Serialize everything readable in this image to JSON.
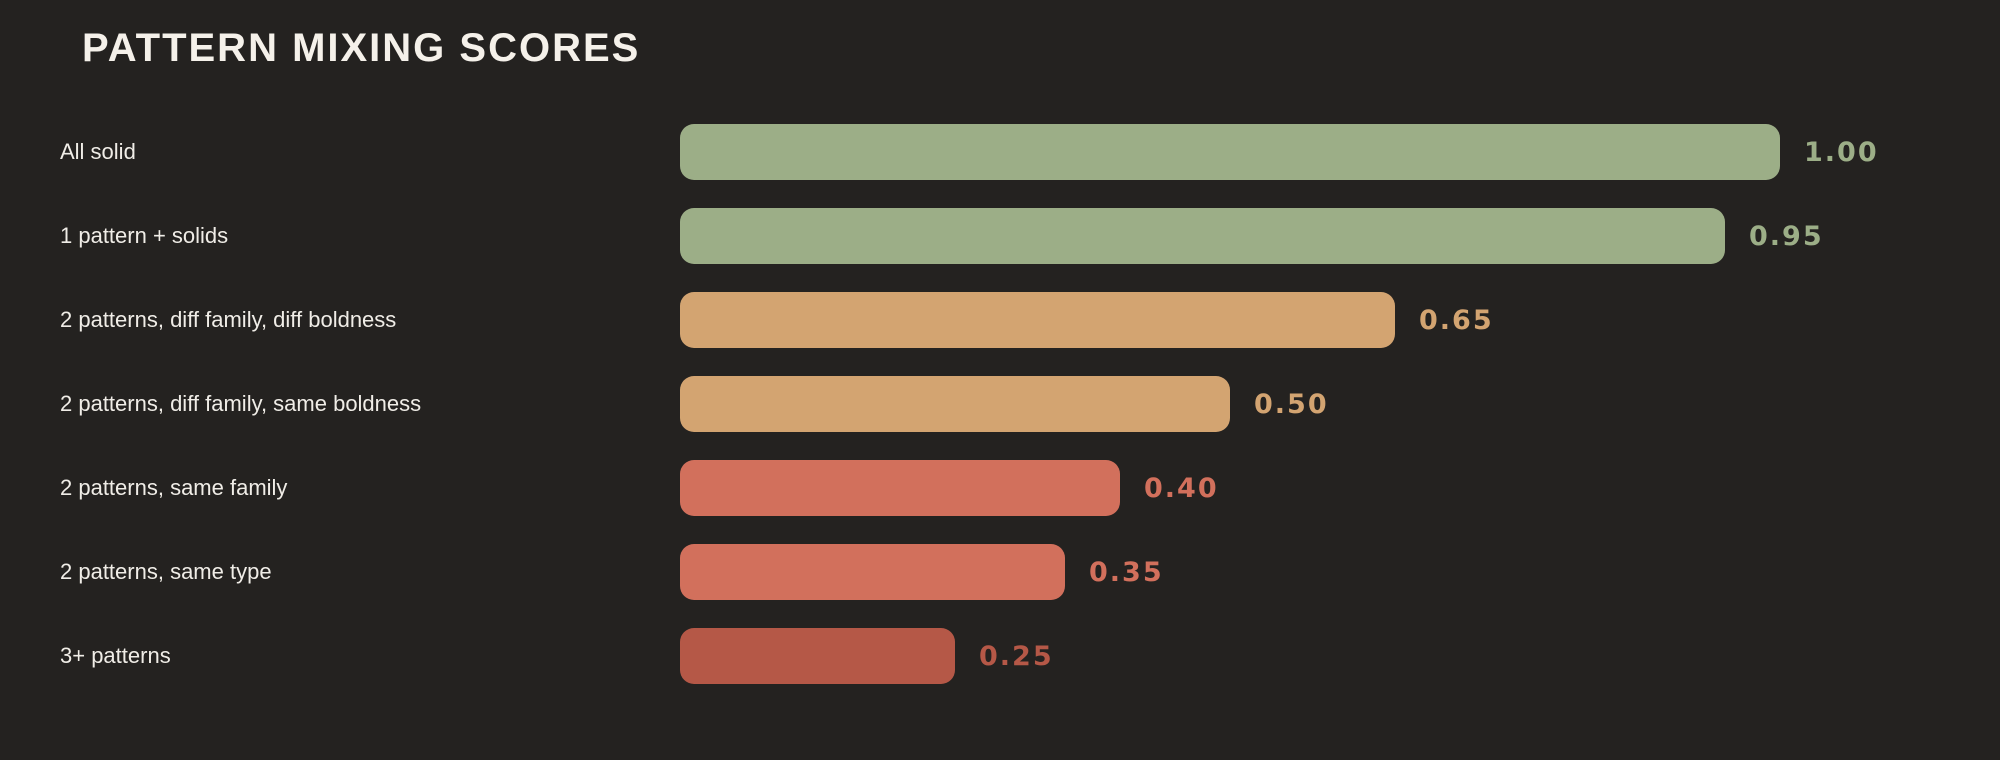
{
  "title": "PATTERN MIXING SCORES",
  "colors": {
    "background": "#242220",
    "title_text": "#F5F1EA",
    "label_text": "#F0EDE7",
    "green": "#9CAE87",
    "tan": "#D3A471",
    "salmon": "#D2705C",
    "red": "#B55847"
  },
  "chart_data": {
    "type": "bar",
    "orientation": "horizontal",
    "title": "PATTERN MIXING SCORES",
    "categories": [
      "All solid",
      "1 pattern + solids",
      "2 patterns, diff family, diff boldness",
      "2 patterns, diff family, same boldness",
      "2 patterns, same family",
      "2 patterns, same type",
      "3+ patterns"
    ],
    "values": [
      1.0,
      0.95,
      0.65,
      0.5,
      0.4,
      0.35,
      0.25
    ],
    "value_labels": [
      "1.00",
      "0.95",
      "0.65",
      "0.50",
      "0.40",
      "0.35",
      "0.25"
    ],
    "bar_colors": [
      "#9CAE87",
      "#9CAE87",
      "#D3A471",
      "#D3A471",
      "#D2705C",
      "#D2705C",
      "#B55847"
    ],
    "value_label_colors": [
      "#9CAE87",
      "#9CAE87",
      "#D3A471",
      "#D3A471",
      "#D2705C",
      "#D2705C",
      "#B55847"
    ],
    "xlim": [
      0,
      1.0
    ],
    "grid": false,
    "legend": false,
    "value_label_position": "right-of-bar",
    "background": "#242220"
  }
}
